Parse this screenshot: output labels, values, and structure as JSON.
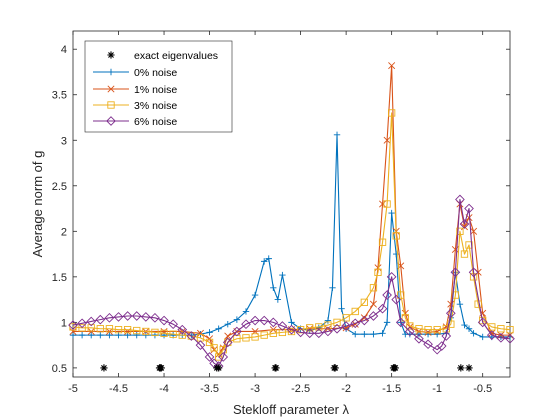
{
  "chart_data": {
    "type": "line",
    "xlabel": "Stekloff parameter λ",
    "ylabel": "Average norm of g",
    "xlim": [
      -5,
      -0.2
    ],
    "ylim": [
      0.4,
      4.2
    ],
    "xticks": [
      -5,
      -4.5,
      -4,
      -3.5,
      -3,
      -2.5,
      -2,
      -1.5,
      -1,
      -0.5
    ],
    "xtick_labels": [
      "-5",
      "-4.5",
      "-4",
      "-3.5",
      "-3",
      "-2.5",
      "-2",
      "-1.5",
      "-1",
      "-0.5"
    ],
    "yticks": [
      0.5,
      1,
      1.5,
      2,
      2.5,
      3,
      3.5,
      4
    ],
    "ytick_labels": [
      "0.5",
      "1",
      "1.5",
      "2",
      "2.5",
      "3",
      "3.5",
      "4"
    ],
    "legend_position": "top-left",
    "grid": false,
    "eigenvalues": {
      "name": "exact eigenvalues",
      "marker": "asterisk",
      "color": "#000000",
      "x": [
        -4.66,
        -4.05,
        -4.04,
        -4.03,
        -3.42,
        -3.4,
        -2.78,
        -2.77,
        -2.13,
        -2.12,
        -1.48,
        -1.47,
        -1.46,
        -0.74,
        -0.65
      ],
      "y": [
        0.5,
        0.5,
        0.5,
        0.5,
        0.5,
        0.5,
        0.5,
        0.5,
        0.5,
        0.5,
        0.5,
        0.5,
        0.5,
        0.5,
        0.5
      ]
    },
    "series": [
      {
        "name": "0% noise",
        "color": "#0072BD",
        "marker": "plus",
        "x": [
          -5,
          -4.9,
          -4.8,
          -4.7,
          -4.6,
          -4.5,
          -4.4,
          -4.3,
          -4.2,
          -4.1,
          -4.0,
          -3.9,
          -3.8,
          -3.7,
          -3.6,
          -3.5,
          -3.4,
          -3.3,
          -3.2,
          -3.1,
          -3.0,
          -2.9,
          -2.85,
          -2.8,
          -2.75,
          -2.7,
          -2.6,
          -2.5,
          -2.4,
          -2.3,
          -2.2,
          -2.15,
          -2.1,
          -2.05,
          -2.0,
          -1.9,
          -1.8,
          -1.7,
          -1.6,
          -1.55,
          -1.5,
          -1.45,
          -1.4,
          -1.35,
          -1.3,
          -1.2,
          -1.1,
          -1.0,
          -0.9,
          -0.85,
          -0.8,
          -0.75,
          -0.7,
          -0.65,
          -0.6,
          -0.5,
          -0.4,
          -0.3,
          -0.2
        ],
        "y": [
          0.86,
          0.86,
          0.86,
          0.86,
          0.86,
          0.86,
          0.86,
          0.86,
          0.86,
          0.86,
          0.86,
          0.86,
          0.86,
          0.86,
          0.87,
          0.89,
          0.93,
          0.98,
          1.03,
          1.12,
          1.3,
          1.67,
          1.7,
          1.38,
          1.25,
          1.52,
          1.0,
          0.93,
          0.91,
          0.94,
          1.02,
          1.38,
          3.06,
          1.15,
          0.93,
          0.87,
          0.87,
          0.87,
          0.88,
          1.0,
          2.2,
          1.75,
          1.0,
          0.87,
          0.87,
          0.87,
          0.87,
          0.87,
          0.88,
          1.05,
          1.55,
          1.2,
          0.97,
          0.93,
          0.88,
          0.84,
          0.84,
          0.84,
          0.84
        ]
      },
      {
        "name": "1% noise",
        "color": "#D95319",
        "marker": "x",
        "x": [
          -5,
          -4.8,
          -4.6,
          -4.4,
          -4.2,
          -4.0,
          -3.8,
          -3.6,
          -3.5,
          -3.45,
          -3.4,
          -3.35,
          -3.3,
          -3.2,
          -3.0,
          -2.8,
          -2.6,
          -2.4,
          -2.2,
          -2.0,
          -1.9,
          -1.8,
          -1.7,
          -1.65,
          -1.6,
          -1.55,
          -1.5,
          -1.45,
          -1.4,
          -1.35,
          -1.3,
          -1.2,
          -1.1,
          -1.0,
          -0.9,
          -0.85,
          -0.8,
          -0.75,
          -0.7,
          -0.65,
          -0.6,
          -0.55,
          -0.5,
          -0.4,
          -0.3,
          -0.2
        ],
        "y": [
          0.9,
          0.9,
          0.9,
          0.9,
          0.9,
          0.9,
          0.9,
          0.88,
          0.82,
          0.7,
          0.65,
          0.72,
          0.85,
          0.9,
          0.9,
          0.92,
          0.92,
          0.93,
          0.93,
          0.94,
          0.98,
          1.05,
          1.2,
          1.6,
          2.3,
          3.0,
          3.82,
          2.0,
          1.62,
          1.1,
          0.95,
          0.9,
          0.89,
          0.9,
          0.95,
          1.2,
          1.8,
          2.3,
          2.05,
          2.15,
          2.0,
          1.55,
          1.1,
          0.88,
          0.86,
          0.86
        ]
      },
      {
        "name": "3% noise",
        "color": "#EDB120",
        "marker": "square",
        "x": [
          -5,
          -4.9,
          -4.8,
          -4.7,
          -4.6,
          -4.5,
          -4.4,
          -4.3,
          -4.2,
          -4.1,
          -4.0,
          -3.9,
          -3.8,
          -3.7,
          -3.6,
          -3.5,
          -3.45,
          -3.4,
          -3.35,
          -3.3,
          -3.2,
          -3.1,
          -3.0,
          -2.9,
          -2.8,
          -2.7,
          -2.6,
          -2.5,
          -2.4,
          -2.3,
          -2.2,
          -2.1,
          -2.0,
          -1.9,
          -1.8,
          -1.7,
          -1.65,
          -1.6,
          -1.55,
          -1.5,
          -1.45,
          -1.4,
          -1.35,
          -1.3,
          -1.2,
          -1.1,
          -1.0,
          -0.9,
          -0.85,
          -0.8,
          -0.75,
          -0.7,
          -0.65,
          -0.6,
          -0.55,
          -0.5,
          -0.4,
          -0.3,
          -0.2
        ],
        "y": [
          0.95,
          0.94,
          0.94,
          0.93,
          0.93,
          0.92,
          0.92,
          0.91,
          0.9,
          0.89,
          0.88,
          0.87,
          0.86,
          0.85,
          0.83,
          0.78,
          0.72,
          0.62,
          0.7,
          0.78,
          0.82,
          0.83,
          0.84,
          0.86,
          0.88,
          0.89,
          0.9,
          0.92,
          0.94,
          0.95,
          0.97,
          1.0,
          1.05,
          1.12,
          1.22,
          1.38,
          1.55,
          1.88,
          2.3,
          3.3,
          1.95,
          1.3,
          1.05,
          0.96,
          0.93,
          0.92,
          0.92,
          0.93,
          0.98,
          1.3,
          2.0,
          1.75,
          1.85,
          1.5,
          1.2,
          1.02,
          0.95,
          0.93,
          0.92
        ]
      },
      {
        "name": "6% noise",
        "color": "#7E2F8E",
        "marker": "diamond",
        "x": [
          -5,
          -4.9,
          -4.8,
          -4.7,
          -4.6,
          -4.5,
          -4.4,
          -4.3,
          -4.2,
          -4.1,
          -4.0,
          -3.9,
          -3.8,
          -3.7,
          -3.6,
          -3.5,
          -3.45,
          -3.4,
          -3.35,
          -3.3,
          -3.2,
          -3.1,
          -3.0,
          -2.9,
          -2.8,
          -2.7,
          -2.6,
          -2.5,
          -2.4,
          -2.3,
          -2.2,
          -2.1,
          -2.0,
          -1.9,
          -1.8,
          -1.7,
          -1.6,
          -1.55,
          -1.5,
          -1.45,
          -1.4,
          -1.3,
          -1.2,
          -1.1,
          -1.0,
          -0.95,
          -0.9,
          -0.85,
          -0.8,
          -0.75,
          -0.7,
          -0.65,
          -0.6,
          -0.5,
          -0.4,
          -0.3,
          -0.2
        ],
        "y": [
          0.97,
          0.99,
          1.01,
          1.03,
          1.05,
          1.06,
          1.07,
          1.07,
          1.06,
          1.05,
          1.02,
          0.98,
          0.92,
          0.85,
          0.75,
          0.62,
          0.55,
          0.52,
          0.62,
          0.78,
          0.9,
          0.98,
          1.02,
          1.02,
          1.0,
          0.96,
          0.92,
          0.89,
          0.88,
          0.88,
          0.9,
          0.93,
          0.96,
          0.99,
          1.02,
          1.07,
          1.15,
          1.3,
          1.5,
          1.25,
          1.0,
          0.9,
          0.82,
          0.76,
          0.7,
          0.74,
          0.85,
          1.1,
          1.55,
          2.35,
          2.08,
          2.25,
          1.55,
          1.0,
          0.86,
          0.83,
          0.82
        ]
      }
    ]
  }
}
